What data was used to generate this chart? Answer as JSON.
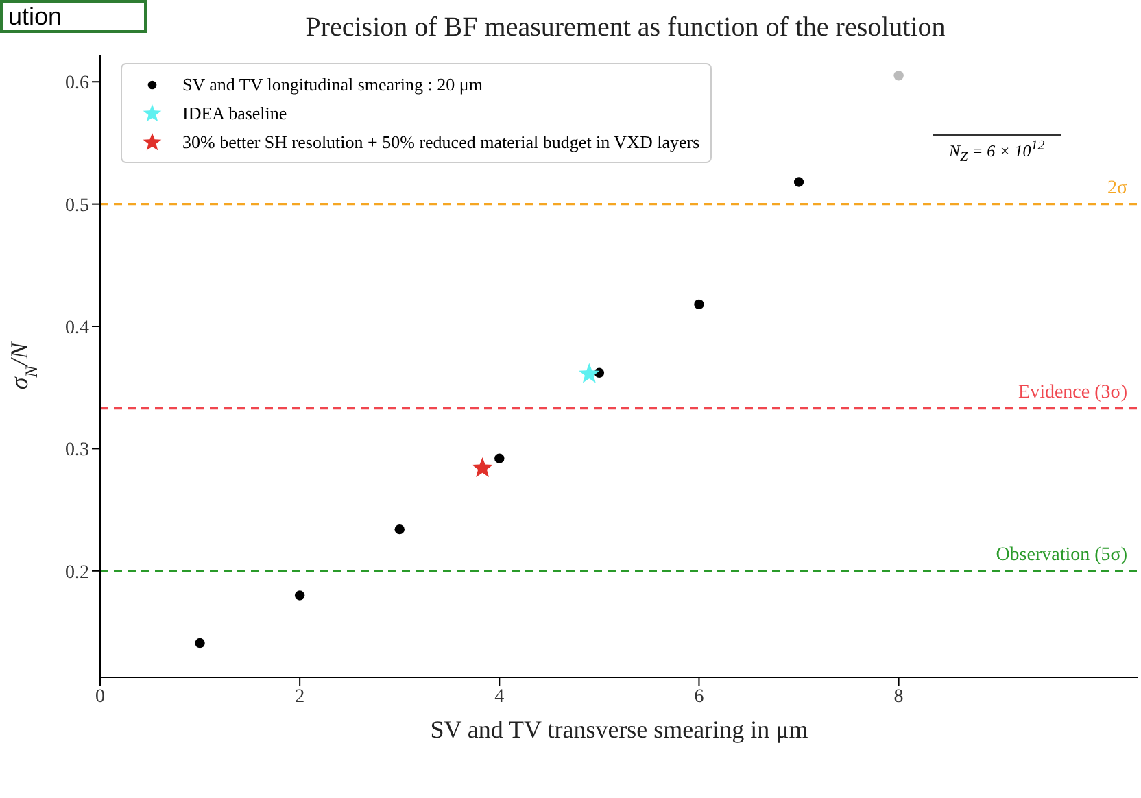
{
  "chart_data": {
    "type": "scatter",
    "title": "Precision of BF measurement as function of the resolution",
    "xlabel": "SV and TV transverse smearing in μm",
    "ylabel": "σ$_{N}$/N",
    "xlim": [
      0,
      10.4
    ],
    "xticks": [
      0,
      2,
      4,
      6,
      8
    ],
    "ylim": [
      0.113,
      0.622
    ],
    "yticks": [
      0.2,
      0.3,
      0.4,
      0.5,
      0.6
    ],
    "grid": false,
    "legend": "top left",
    "series": [
      {
        "name": "SV and TV longitudinal smearing : 20 μm",
        "color": "#000000",
        "marker": "circle",
        "x": [
          1,
          2,
          3,
          4,
          5,
          6,
          7,
          8
        ],
        "values": [
          0.141,
          0.18,
          0.234,
          0.292,
          0.362,
          0.418,
          0.518,
          0.605
        ],
        "colors": [
          "#000000",
          "#000000",
          "#000000",
          "#000000",
          "#000000",
          "#000000",
          "#000000",
          "#bbbbbb"
        ]
      },
      {
        "name": "IDEA baseline",
        "color": "#5ef0f0",
        "marker": "star",
        "x": [
          4.9
        ],
        "values": [
          0.361
        ]
      },
      {
        "name": "30% better SH resolution + 50% reduced material budget in VXD layers",
        "color": "#e0302a",
        "marker": "star",
        "x": [
          3.83
        ],
        "values": [
          0.284
        ]
      }
    ],
    "ref_lines": [
      {
        "axis": "y",
        "value": 0.5,
        "label": "2σ",
        "color": "#f5a623",
        "line_style": "dashed"
      },
      {
        "axis": "y",
        "value": 0.333,
        "label": "Evidence (3σ)",
        "color": "#f0474f",
        "line_style": "dashed"
      },
      {
        "axis": "y",
        "value": 0.2,
        "label": "Observation (5σ)",
        "color": "#2a9a2a",
        "line_style": "dashed"
      }
    ],
    "annotations": [
      "ution",
      "N$_{Z}$ = 6 × 10$^{12}$"
    ]
  }
}
